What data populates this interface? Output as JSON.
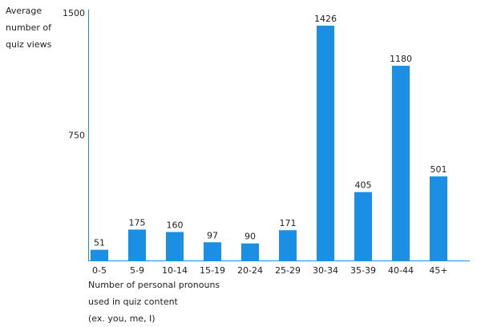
{
  "chart_data": {
    "type": "bar",
    "y_label": [
      "Average",
      "number of",
      "quiz views"
    ],
    "x_label": [
      "Number of personal pronouns",
      "used in quiz content",
      "(ex. you, me, I)"
    ],
    "categories": [
      "0-5",
      "5-9",
      "10-14",
      "15-19",
      "20-24",
      "25-29",
      "30-34",
      "35-39",
      "40-44",
      "45+"
    ],
    "values": [
      51,
      175,
      160,
      97,
      90,
      171,
      1426,
      405,
      1180,
      501
    ],
    "color": "#1a8fe3",
    "ylim": [
      0,
      1500
    ],
    "yticks": [
      750,
      1500
    ],
    "grid": false
  }
}
